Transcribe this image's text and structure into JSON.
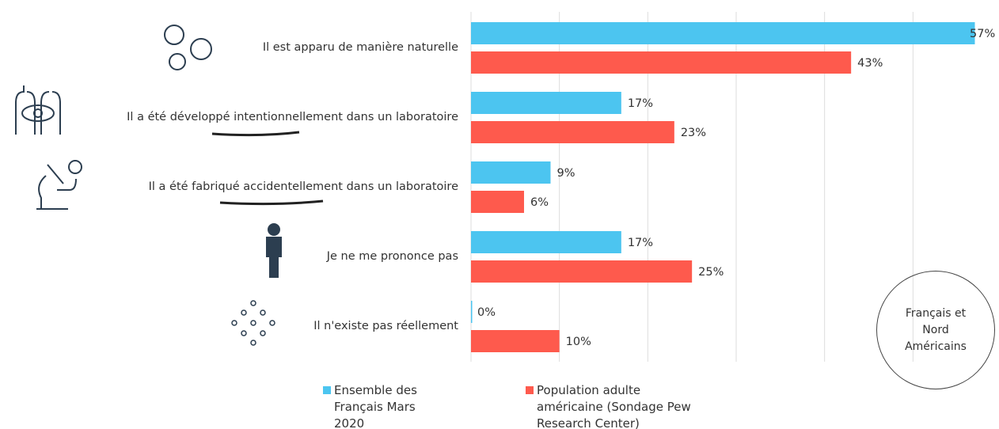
{
  "chart_data": {
    "type": "hbar",
    "categories": [
      "Il est apparu de manière naturelle",
      "Il a été développé intentionnellement dans un laboratoire",
      "Il a été fabriqué accidentellement dans un laboratoire",
      "Je ne me prononce pas",
      "Il n'existe pas réellement"
    ],
    "series": [
      {
        "name": "Ensemble des Français Mars 2020",
        "color": "#4cc5f0",
        "values": [
          57,
          17,
          9,
          17,
          0
        ],
        "value_labels": [
          "57%",
          "17%",
          "9%",
          "17%",
          "0%"
        ]
      },
      {
        "name": "Population adulte américaine (Sondage Pew Research Center)",
        "color": "#fe5a4d",
        "values": [
          43,
          23,
          6,
          25,
          10
        ],
        "value_labels": [
          "43%",
          "23%",
          "6%",
          "25%",
          "10%"
        ]
      }
    ],
    "xlim": [
      0,
      60
    ],
    "xticks": [
      0,
      10,
      20,
      30,
      40,
      50
    ],
    "grid": true,
    "annotation": "Français et Nord Américains"
  }
}
